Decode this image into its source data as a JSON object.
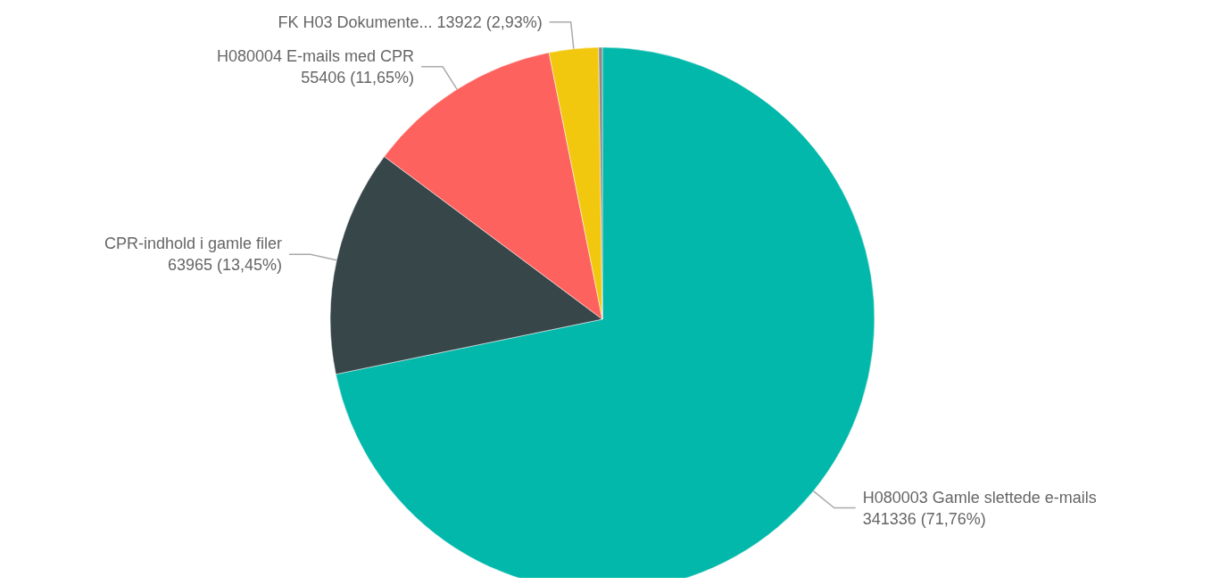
{
  "chart_data": {
    "type": "pie",
    "categories": [
      "H080003 Gamle slettede e-mails",
      "CPR-indhold i gamle filer",
      "H080004 E-mails med CPR",
      "FK H03 Dokumente...",
      null
    ],
    "values": [
      341336,
      63965,
      55406,
      13922,
      1034
    ],
    "colors": [
      "#01b8aa",
      "#374649",
      "#fd625e",
      "#f2c80f",
      "#8a8a8a"
    ],
    "value_labels": [
      "341336 (71,76%)",
      "63965 (13,45%)",
      "55406 (11,65%)",
      "13922 (2,93%)",
      null
    ]
  }
}
